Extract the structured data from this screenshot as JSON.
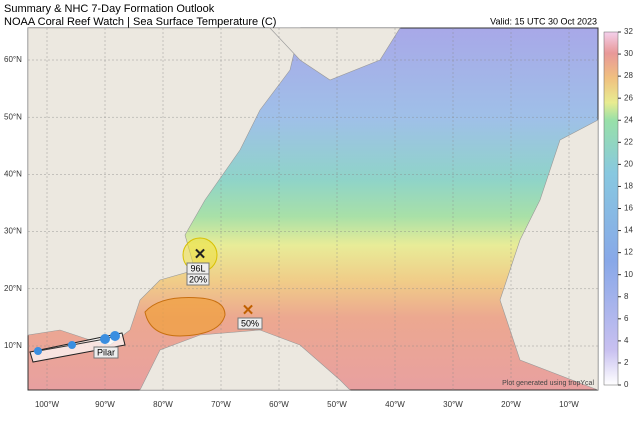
{
  "header": {
    "title": "Summary & NHC 7-Day Formation Outlook",
    "subtitle": "NOAA Coral Reef Watch | Sea Surface Temperature (C)",
    "valid": "Valid: 15 UTC 30 Oct 2023"
  },
  "map": {
    "lat_labels": [
      "60°N",
      "50°N",
      "40°N",
      "30°N",
      "20°N",
      "10°N"
    ],
    "lon_labels": [
      "100°W",
      "90°W",
      "80°W",
      "70°W",
      "60°W",
      "50°W",
      "40°W",
      "30°W",
      "20°W",
      "10°W"
    ]
  },
  "colorbar": {
    "ticks": [
      0,
      2,
      4,
      6,
      8,
      10,
      12,
      14,
      16,
      18,
      20,
      22,
      24,
      26,
      28,
      30,
      32
    ]
  },
  "annotations": {
    "invest_96l": {
      "label": "96L",
      "chance": "20%"
    },
    "area_2": {
      "chance": "50%"
    },
    "storm": {
      "name": "Pilar"
    }
  },
  "footer": "Plot generated using tropYcal"
}
